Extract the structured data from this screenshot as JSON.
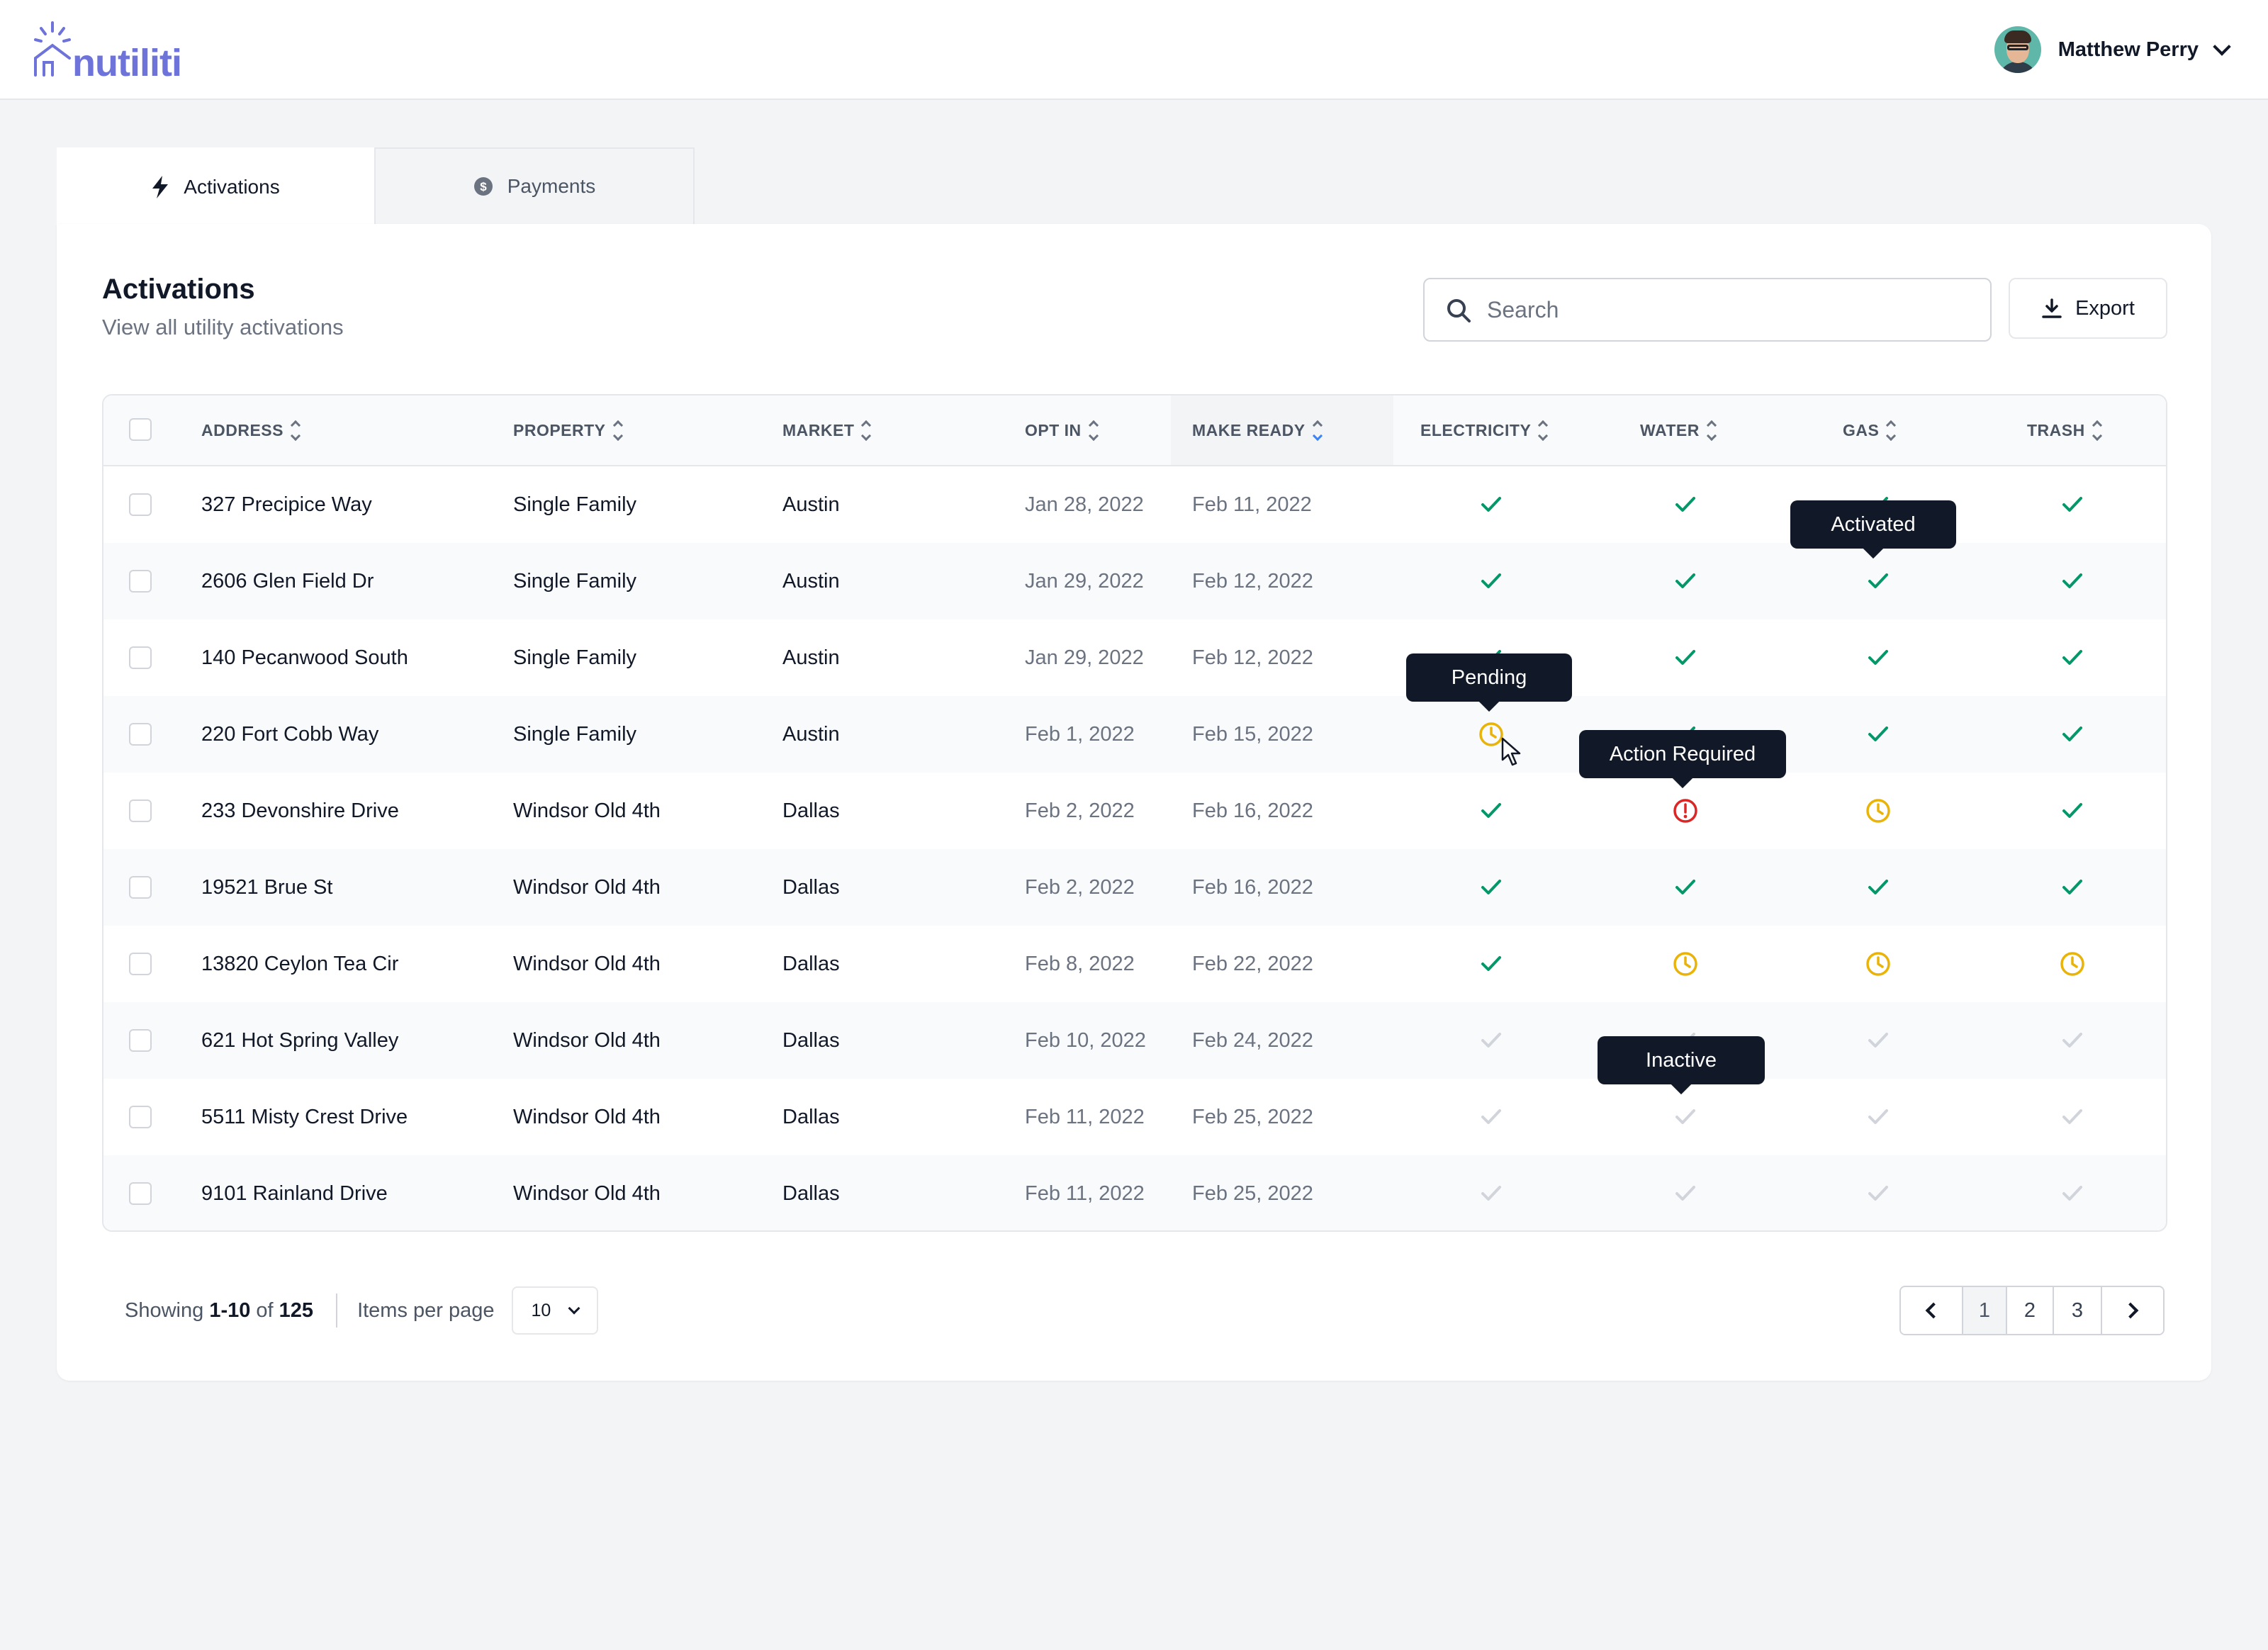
{
  "app": {
    "logo_text": "nutiliti",
    "brand_color": "#6e73d9"
  },
  "user": {
    "name": "Matthew Perry"
  },
  "tabs": [
    {
      "label": "Activations",
      "icon": "bolt-icon",
      "active": true
    },
    {
      "label": "Payments",
      "icon": "dollar-circle-icon",
      "active": false
    }
  ],
  "page": {
    "title": "Activations",
    "subtitle": "View all utility activations"
  },
  "search": {
    "placeholder": "Search",
    "value": ""
  },
  "export": {
    "label": "Export"
  },
  "table": {
    "columns": [
      "ADDRESS",
      "PROPERTY",
      "MARKET",
      "OPT IN",
      "MAKE READY",
      "ELECTRICITY",
      "WATER",
      "GAS",
      "TRASH"
    ],
    "sorted_column": "MAKE READY",
    "status_colors": {
      "activated": "#059669",
      "pending": "#eab308",
      "action_required": "#dc2626",
      "inactive": "#d1d5db"
    },
    "rows": [
      {
        "address": "327 Precipice Way",
        "property": "Single Family",
        "market": "Austin",
        "opt_in": "Jan 28, 2022",
        "make_ready": "Feb 11, 2022",
        "electricity": "activated",
        "water": "activated",
        "gas": "activated",
        "trash": "activated"
      },
      {
        "address": "2606 Glen Field Dr",
        "property": "Single Family",
        "market": "Austin",
        "opt_in": "Jan 29, 2022",
        "make_ready": "Feb 12, 2022",
        "electricity": "activated",
        "water": "activated",
        "gas": "activated",
        "trash": "activated"
      },
      {
        "address": "140 Pecanwood South",
        "property": "Single Family",
        "market": "Austin",
        "opt_in": "Jan 29, 2022",
        "make_ready": "Feb 12, 2022",
        "electricity": "activated",
        "water": "activated",
        "gas": "activated",
        "trash": "activated"
      },
      {
        "address": "220 Fort Cobb Way",
        "property": "Single Family",
        "market": "Austin",
        "opt_in": "Feb 1, 2022",
        "make_ready": "Feb 15, 2022",
        "electricity": "pending",
        "water": "activated",
        "gas": "activated",
        "trash": "activated"
      },
      {
        "address": "233 Devonshire Drive",
        "property": "Windsor Old 4th",
        "market": "Dallas",
        "opt_in": "Feb 2, 2022",
        "make_ready": "Feb 16, 2022",
        "electricity": "activated",
        "water": "action_required",
        "gas": "pending",
        "trash": "activated"
      },
      {
        "address": "19521 Brue St",
        "property": "Windsor Old 4th",
        "market": "Dallas",
        "opt_in": "Feb 2, 2022",
        "make_ready": "Feb 16, 2022",
        "electricity": "activated",
        "water": "activated",
        "gas": "activated",
        "trash": "activated"
      },
      {
        "address": "13820 Ceylon Tea Cir",
        "property": "Windsor Old 4th",
        "market": "Dallas",
        "opt_in": "Feb 8, 2022",
        "make_ready": "Feb 22, 2022",
        "electricity": "activated",
        "water": "pending",
        "gas": "pending",
        "trash": "pending"
      },
      {
        "address": "621 Hot Spring Valley",
        "property": "Windsor Old 4th",
        "market": "Dallas",
        "opt_in": "Feb 10, 2022",
        "make_ready": "Feb 24, 2022",
        "electricity": "inactive",
        "water": "inactive",
        "gas": "inactive",
        "trash": "inactive"
      },
      {
        "address": "5511 Misty Crest Drive",
        "property": "Windsor Old 4th",
        "market": "Dallas",
        "opt_in": "Feb 11, 2022",
        "make_ready": "Feb 25, 2022",
        "electricity": "inactive",
        "water": "inactive",
        "gas": "inactive",
        "trash": "inactive"
      },
      {
        "address": "9101 Rainland Drive",
        "property": "Windsor Old 4th",
        "market": "Dallas",
        "opt_in": "Feb 11, 2022",
        "make_ready": "Feb 25, 2022",
        "electricity": "inactive",
        "water": "inactive",
        "gas": "inactive",
        "trash": "inactive"
      }
    ]
  },
  "tooltips": {
    "activated": "Activated",
    "pending": "Pending",
    "action_required": "Action Required",
    "inactive": "Inactive"
  },
  "footer": {
    "showing_prefix": "Showing",
    "range": "1-10",
    "of_word": "of",
    "total": "125",
    "items_per_page_label": "Items per page",
    "items_per_page_value": "10"
  },
  "pagination": {
    "pages": [
      "1",
      "2",
      "3"
    ],
    "current": "1"
  }
}
